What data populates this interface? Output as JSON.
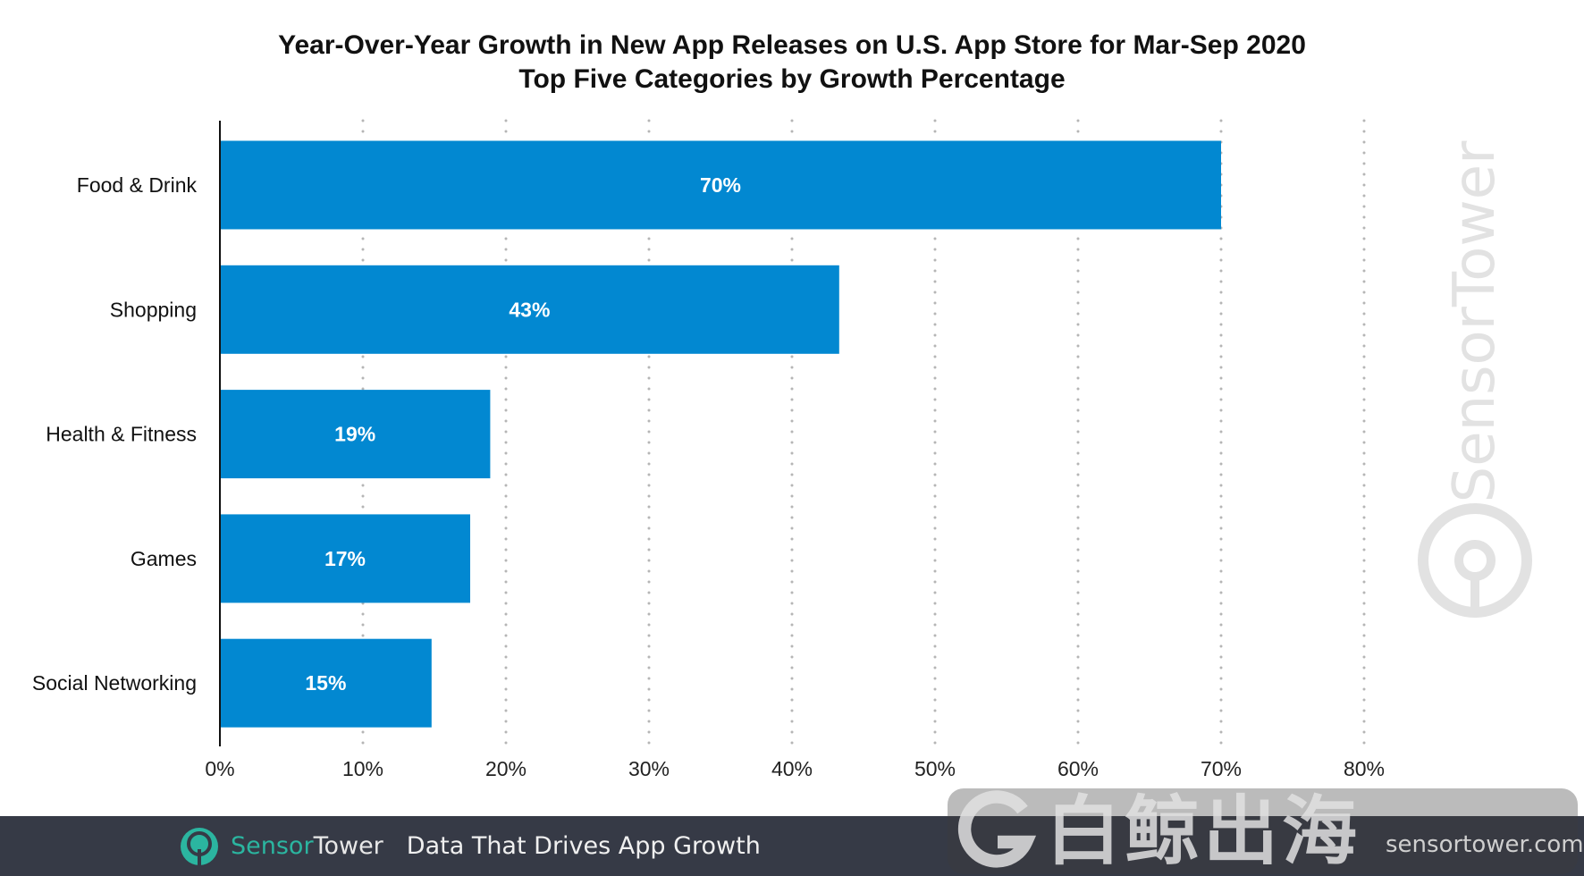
{
  "chart_data": {
    "type": "bar",
    "orientation": "horizontal",
    "title": "Year-Over-Year Growth in New App Releases on U.S. App Store for Mar-Sep 2020",
    "subtitle": "Top Five Categories by Growth Percentage",
    "categories": [
      "Food & Drink",
      "Shopping",
      "Health & Fitness",
      "Games",
      "Social Networking"
    ],
    "values": [
      70,
      43.3,
      18.9,
      17.5,
      14.8
    ],
    "data_labels": [
      "70%",
      "43%",
      "19%",
      "17%",
      "15%"
    ],
    "xlim": [
      0,
      80
    ],
    "x_ticks": [
      0,
      10,
      20,
      30,
      40,
      50,
      60,
      70,
      80
    ],
    "x_tick_labels": [
      "0%",
      "10%",
      "20%",
      "30%",
      "40%",
      "50%",
      "60%",
      "70%",
      "80%"
    ],
    "grid": "vertical dotted",
    "xlabel": "",
    "ylabel": "",
    "bar_color": "#0288d1"
  },
  "footer": {
    "brand_a": "Sensor",
    "brand_b": "Tower",
    "tagline": "Data That Drives App Growth",
    "url": "sensortower.com"
  },
  "watermark": {
    "vertical": "SensorTower",
    "overlay_cn": "白鲸出海"
  }
}
